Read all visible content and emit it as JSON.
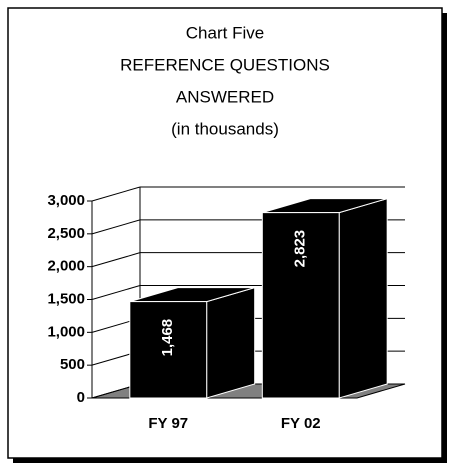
{
  "chart_data": {
    "type": "bar3d",
    "title": [
      "Chart Five",
      "REFERENCE QUESTIONS",
      "ANSWERED",
      "(in thousands)"
    ],
    "categories": [
      "FY 97",
      "FY 02"
    ],
    "values": [
      1468,
      2823
    ],
    "value_labels": [
      "1,468",
      "2,823"
    ],
    "color": "#000000",
    "ylim": [
      0,
      3000
    ],
    "yticks": [
      0,
      500,
      {
        "value": 1000,
        "label": "1,000"
      },
      {
        "value": 1500,
        "label": "1,500"
      },
      {
        "value": 2000,
        "label": "2,000"
      },
      {
        "value": 2500,
        "label": "2,500"
      },
      {
        "value": 3000,
        "label": "3,000"
      }
    ],
    "grid": true
  }
}
